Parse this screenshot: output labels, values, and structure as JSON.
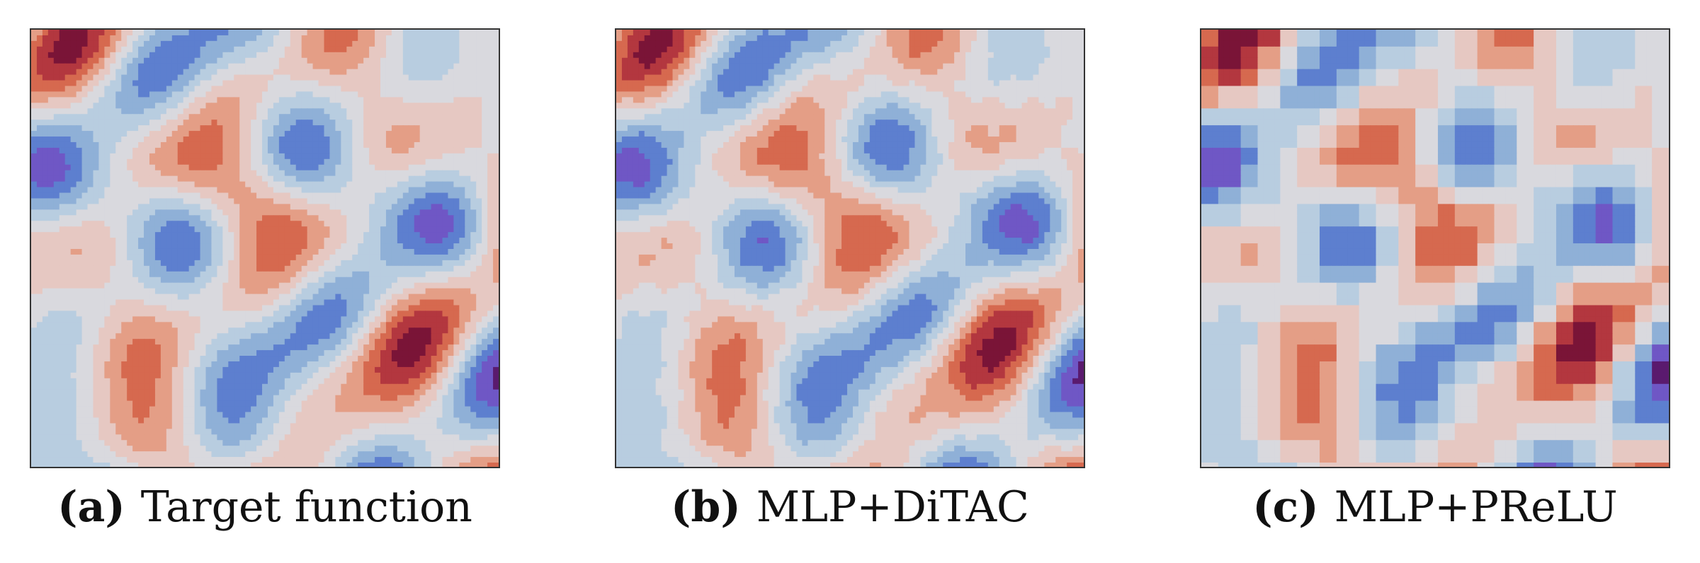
{
  "figure": {
    "panels": [
      {
        "label": "(a)",
        "caption": "Target function",
        "variant": "smooth"
      },
      {
        "label": "(b)",
        "caption": "MLP+DiTAC",
        "variant": "noisy"
      },
      {
        "label": "(c)",
        "caption": "MLP+PReLU",
        "variant": "faceted"
      }
    ],
    "colormap": [
      "#5a1a6e",
      "#6f57c5",
      "#5d7fcf",
      "#8fb0d7",
      "#b8cde0",
      "#d9d9de",
      "#e6c8c2",
      "#e49e86",
      "#d6694f",
      "#b3373f",
      "#7a1437"
    ]
  }
}
